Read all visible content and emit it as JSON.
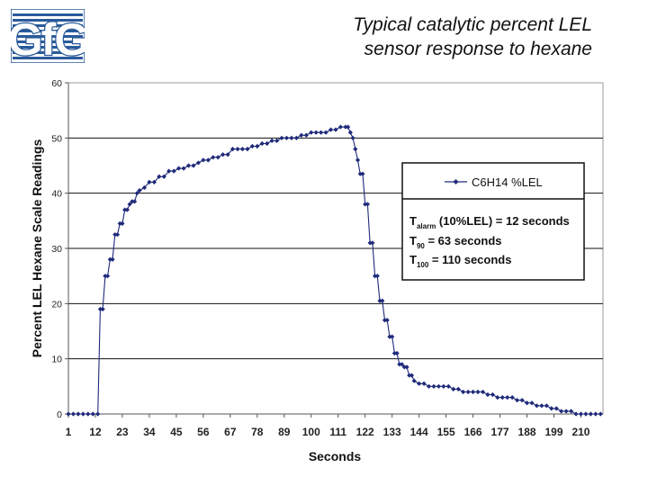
{
  "logo": {
    "text": "GfG"
  },
  "title": {
    "line1": "Typical catalytic percent LEL",
    "line2": "sensor response to hexane"
  },
  "colors": {
    "series": "#1f2a7a",
    "grid": "#111111",
    "plot_border": "#9a9a9a"
  },
  "chart_data": {
    "type": "line",
    "title": "Typical catalytic percent LEL sensor response to hexane",
    "xlabel": "Seconds",
    "ylabel": "Percent LEL Hexane Scale Readings",
    "xlim": [
      1,
      219
    ],
    "ylim": [
      0,
      60
    ],
    "yticks": [
      0,
      10,
      20,
      30,
      40,
      50,
      60
    ],
    "xticks": [
      1,
      12,
      23,
      34,
      45,
      56,
      67,
      78,
      89,
      100,
      111,
      122,
      133,
      144,
      155,
      166,
      177,
      188,
      199,
      210
    ],
    "grid": true,
    "legend_placement": "right",
    "series": [
      {
        "name": "C6H14 %LEL",
        "x": [
          1,
          3,
          5,
          7,
          9,
          11,
          13,
          14,
          15,
          16,
          17,
          18,
          19,
          20,
          21,
          22,
          23,
          24,
          25,
          26,
          27,
          28,
          29,
          30,
          32,
          34,
          36,
          38,
          40,
          42,
          44,
          46,
          48,
          50,
          52,
          54,
          56,
          58,
          60,
          62,
          64,
          66,
          68,
          70,
          72,
          74,
          76,
          78,
          80,
          82,
          84,
          86,
          88,
          90,
          92,
          94,
          96,
          98,
          100,
          102,
          104,
          106,
          108,
          110,
          112,
          114,
          115,
          116,
          117,
          118,
          119,
          120,
          121,
          122,
          123,
          124,
          125,
          126,
          127,
          128,
          129,
          130,
          131,
          132,
          133,
          134,
          135,
          136,
          137,
          138,
          139,
          140,
          141,
          142,
          144,
          146,
          148,
          150,
          152,
          154,
          156,
          158,
          160,
          162,
          164,
          166,
          168,
          170,
          172,
          174,
          176,
          178,
          180,
          182,
          184,
          186,
          188,
          190,
          192,
          194,
          196,
          198,
          200,
          202,
          204,
          206,
          208,
          210,
          212,
          214,
          216,
          218
        ],
        "y": [
          0,
          0,
          0,
          0,
          0,
          0,
          0,
          19,
          19,
          25,
          25,
          28,
          28,
          32.5,
          32.5,
          34.5,
          34.5,
          37,
          37,
          38,
          38.5,
          38.5,
          40,
          40.5,
          41,
          42,
          42,
          43,
          43,
          44,
          44,
          44.5,
          44.5,
          45,
          45,
          45.5,
          46,
          46,
          46.5,
          46.5,
          47,
          47,
          48,
          48,
          48,
          48,
          48.5,
          48.5,
          49,
          49,
          49.5,
          49.5,
          50,
          50,
          50,
          50,
          50.5,
          50.5,
          51,
          51,
          51,
          51,
          51.5,
          51.5,
          52,
          52,
          52,
          51,
          50,
          48,
          46,
          43.5,
          43.5,
          38,
          38,
          31,
          31,
          25,
          25,
          20.5,
          20.5,
          17,
          17,
          14,
          14,
          11,
          11,
          9,
          9,
          8.5,
          8.5,
          7,
          7,
          6,
          5.5,
          5.5,
          5,
          5,
          5,
          5,
          5,
          4.5,
          4.5,
          4,
          4,
          4,
          4,
          4,
          3.5,
          3.5,
          3,
          3,
          3,
          3,
          2.5,
          2.5,
          2,
          2,
          1.5,
          1.5,
          1.5,
          1,
          1,
          0.5,
          0.5,
          0.5,
          0,
          0,
          0,
          0,
          0,
          0
        ]
      }
    ],
    "annotations": [
      {
        "main": "T",
        "sub": "alarm",
        "text": " (10%LEL) = 12 seconds"
      },
      {
        "main": "T",
        "sub": "90",
        "text": " = 63 seconds"
      },
      {
        "main": "T",
        "sub": "100",
        "text": " = 110 seconds"
      }
    ]
  }
}
